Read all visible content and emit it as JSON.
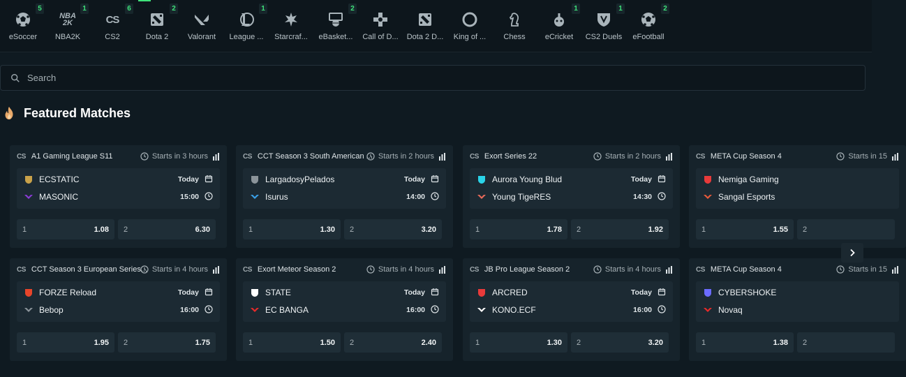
{
  "games": [
    {
      "label": "eSoccer",
      "count": "5",
      "icon": "soccer-ball-icon"
    },
    {
      "label": "NBA2K",
      "count": "1",
      "icon": "nba2k-icon"
    },
    {
      "label": "CS2",
      "count": "6",
      "icon": "cs2-icon"
    },
    {
      "label": "Dota 2",
      "count": "2",
      "icon": "dota2-icon"
    },
    {
      "label": "Valorant",
      "count": "",
      "icon": "valorant-icon"
    },
    {
      "label": "League ...",
      "count": "1",
      "icon": "league-icon"
    },
    {
      "label": "Starcraf...",
      "count": "",
      "icon": "starcraft-icon"
    },
    {
      "label": "eBasket...",
      "count": "2",
      "icon": "ebasketball-icon"
    },
    {
      "label": "Call of D...",
      "count": "",
      "icon": "call-of-duty-icon"
    },
    {
      "label": "Dota 2 D...",
      "count": "",
      "icon": "dota2-icon"
    },
    {
      "label": "King of ...",
      "count": "",
      "icon": "king-of-glory-icon"
    },
    {
      "label": "Chess",
      "count": "",
      "icon": "chess-icon"
    },
    {
      "label": "eCricket",
      "count": "1",
      "icon": "cricket-icon"
    },
    {
      "label": "CS2 Duels",
      "count": "1",
      "icon": "cs2-duels-icon"
    },
    {
      "label": "eFootball",
      "count": "2",
      "icon": "soccer-ball-icon"
    }
  ],
  "search": {
    "placeholder": "Search"
  },
  "featured": {
    "title": "Featured Matches"
  },
  "matches": [
    {
      "game": "CS",
      "league": "A1 Gaming League S11",
      "starts": "Starts in 3 hours",
      "team1": "ECSTATIC",
      "team2": "MASONIC",
      "day": "Today",
      "time": "15:00",
      "odds1_label": "1",
      "odds1": "1.08",
      "odds2_label": "2",
      "odds2": "6.30"
    },
    {
      "game": "CS",
      "league": "CCT Season 3 South American ...",
      "starts": "Starts in 2 hours",
      "team1": "LargadosyPelados",
      "team2": "Isurus",
      "day": "Today",
      "time": "14:00",
      "odds1_label": "1",
      "odds1": "1.30",
      "odds2_label": "2",
      "odds2": "3.20"
    },
    {
      "game": "CS",
      "league": "Exort Series 22",
      "starts": "Starts in 2 hours",
      "team1": "Aurora Young Blud",
      "team2": "Young TigeRES",
      "day": "Today",
      "time": "14:30",
      "odds1_label": "1",
      "odds1": "1.78",
      "odds2_label": "2",
      "odds2": "1.92"
    },
    {
      "game": "CS",
      "league": "META Cup Season 4",
      "starts": "Starts in 15",
      "team1": "Nemiga Gaming",
      "team2": "Sangal Esports",
      "day": "",
      "time": "",
      "odds1_label": "1",
      "odds1": "1.55",
      "odds2_label": "2",
      "odds2": ""
    },
    {
      "game": "CS",
      "league": "CCT Season 3 European Series...",
      "starts": "Starts in 4 hours",
      "team1": "FORZE Reload",
      "team2": "Bebop",
      "day": "Today",
      "time": "16:00",
      "odds1_label": "1",
      "odds1": "1.95",
      "odds2_label": "2",
      "odds2": "1.75"
    },
    {
      "game": "CS",
      "league": "Exort Meteor Season 2",
      "starts": "Starts in 4 hours",
      "team1": "STATE",
      "team2": "EC BANGA",
      "day": "Today",
      "time": "16:00",
      "odds1_label": "1",
      "odds1": "1.50",
      "odds2_label": "2",
      "odds2": "2.40"
    },
    {
      "game": "CS",
      "league": "JB Pro League Season 2",
      "starts": "Starts in 4 hours",
      "team1": "ARCRED",
      "team2": "KONO.ECF",
      "day": "Today",
      "time": "16:00",
      "odds1_label": "1",
      "odds1": "1.30",
      "odds2_label": "2",
      "odds2": "3.20"
    },
    {
      "game": "CS",
      "league": "META Cup Season 4",
      "starts": "Starts in 15",
      "team1": "CYBERSHOKE",
      "team2": "Novaq",
      "day": "",
      "time": "",
      "odds1_label": "1",
      "odds1": "1.38",
      "odds2_label": "2",
      "odds2": ""
    }
  ],
  "colors": {
    "accent": "#3ee27a",
    "background": "#0f1a21",
    "card": "#16232b"
  }
}
